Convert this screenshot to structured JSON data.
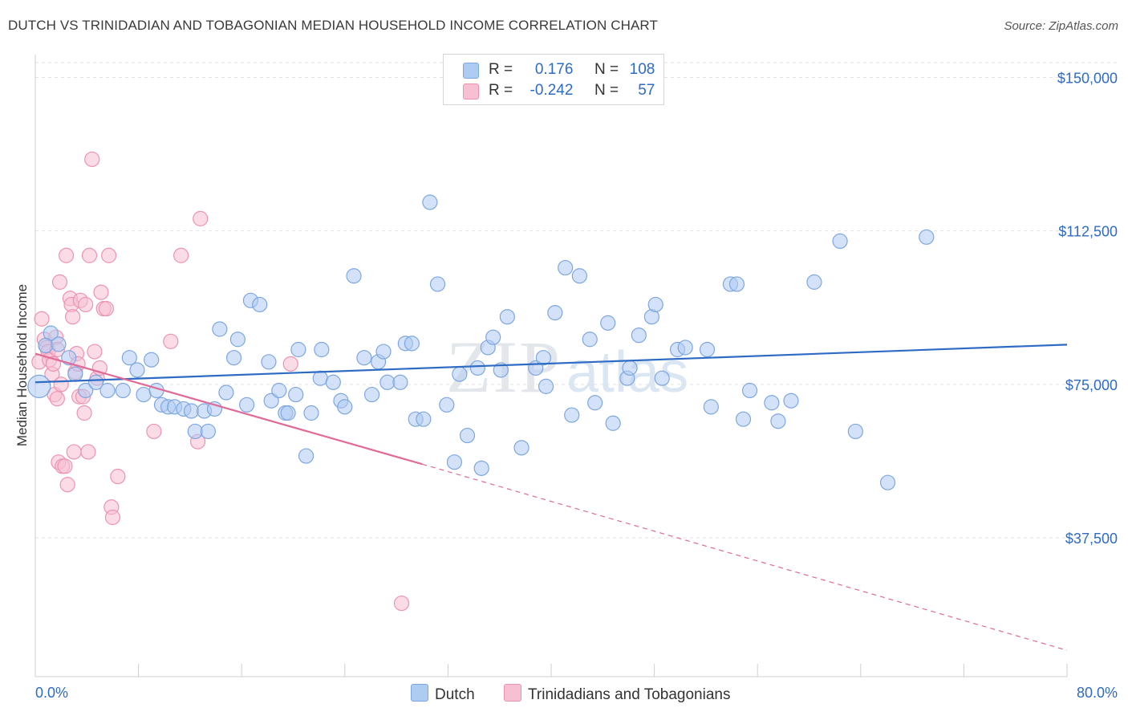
{
  "header": {
    "title": "DUTCH VS TRINIDADIAN AND TOBAGONIAN MEDIAN HOUSEHOLD INCOME CORRELATION CHART",
    "source": "Source: ZipAtlas.com"
  },
  "watermark": {
    "zip": "ZIP",
    "atlas": "atlas"
  },
  "legend": {
    "rows": [
      {
        "r_label": "R =",
        "r_value": "0.176",
        "n_label": "N =",
        "n_value": "108",
        "color": "#aecbf2",
        "stroke": "#7ea7e0"
      },
      {
        "r_label": "R =",
        "r_value": "-0.242",
        "n_label": "N =",
        "n_value": "57",
        "color": "#f7c0d2",
        "stroke": "#ec93b1"
      }
    ]
  },
  "bottom_legend": {
    "dutch": "Dutch",
    "trini": "Trinidadians and Tobagonians"
  },
  "chart_data": {
    "type": "scatter",
    "title": "DUTCH VS TRINIDADIAN AND TOBAGONIAN MEDIAN HOUSEHOLD INCOME CORRELATION CHART",
    "ylabel": "Median Household Income",
    "xlim": [
      0,
      80
    ],
    "ylim": [
      0,
      155000
    ],
    "x_tick_labels": [
      "0.0%",
      "80.0%"
    ],
    "y_ticks": [
      {
        "value": 37500,
        "label": "$37,500"
      },
      {
        "value": 75000,
        "label": "$75,000"
      },
      {
        "value": 112500,
        "label": "$112,500"
      },
      {
        "value": 150000,
        "label": "$150,000"
      }
    ],
    "grid": "horizontal dashed",
    "legend_position": "top-center",
    "series": [
      {
        "name": "Dutch",
        "color": "#7ea7e0",
        "fill": "#aecbf2",
        "trend": {
          "x0": 0,
          "y0": 75500,
          "x1": 80,
          "y1": 84700
        },
        "points": [
          [
            0.3,
            74500
          ],
          [
            1.2,
            87500
          ],
          [
            0.8,
            84500
          ],
          [
            1.8,
            84800
          ],
          [
            2.6,
            81500
          ],
          [
            3.1,
            77500
          ],
          [
            3.9,
            73500
          ],
          [
            4.7,
            75500
          ],
          [
            5.6,
            73500
          ],
          [
            6.8,
            73500
          ],
          [
            7.3,
            81500
          ],
          [
            7.9,
            78500
          ],
          [
            8.4,
            72500
          ],
          [
            9.0,
            81000
          ],
          [
            9.4,
            73500
          ],
          [
            9.8,
            70000
          ],
          [
            10.3,
            69500
          ],
          [
            10.8,
            69500
          ],
          [
            11.5,
            69000
          ],
          [
            12.1,
            68500
          ],
          [
            12.4,
            63500
          ],
          [
            13.1,
            68500
          ],
          [
            13.4,
            63500
          ],
          [
            13.9,
            69000
          ],
          [
            14.3,
            88500
          ],
          [
            14.8,
            73000
          ],
          [
            15.4,
            81500
          ],
          [
            15.7,
            86000
          ],
          [
            16.4,
            70000
          ],
          [
            16.7,
            95500
          ],
          [
            17.4,
            94500
          ],
          [
            18.1,
            80500
          ],
          [
            18.3,
            71000
          ],
          [
            18.9,
            73500
          ],
          [
            19.4,
            68000
          ],
          [
            19.6,
            68000
          ],
          [
            20.2,
            72500
          ],
          [
            20.4,
            83500
          ],
          [
            21.0,
            57500
          ],
          [
            21.4,
            68000
          ],
          [
            22.1,
            76500
          ],
          [
            22.2,
            83500
          ],
          [
            23.1,
            75500
          ],
          [
            23.7,
            71000
          ],
          [
            24.0,
            69500
          ],
          [
            24.7,
            101500
          ],
          [
            25.5,
            81500
          ],
          [
            26.1,
            72500
          ],
          [
            26.6,
            80500
          ],
          [
            27.0,
            83000
          ],
          [
            27.3,
            75500
          ],
          [
            28.3,
            75500
          ],
          [
            28.7,
            85000
          ],
          [
            29.2,
            85000
          ],
          [
            29.5,
            66500
          ],
          [
            30.1,
            66500
          ],
          [
            30.6,
            119500
          ],
          [
            31.2,
            99500
          ],
          [
            31.9,
            70000
          ],
          [
            32.5,
            56000
          ],
          [
            32.9,
            77500
          ],
          [
            33.5,
            62500
          ],
          [
            34.3,
            79000
          ],
          [
            34.6,
            54500
          ],
          [
            35.1,
            84000
          ],
          [
            35.5,
            86500
          ],
          [
            36.1,
            78500
          ],
          [
            36.6,
            91500
          ],
          [
            37.7,
            59500
          ],
          [
            38.8,
            79000
          ],
          [
            39.4,
            81500
          ],
          [
            39.6,
            74500
          ],
          [
            40.3,
            92500
          ],
          [
            41.1,
            103500
          ],
          [
            41.6,
            67500
          ],
          [
            42.2,
            101500
          ],
          [
            43.0,
            86000
          ],
          [
            43.4,
            70500
          ],
          [
            44.4,
            90000
          ],
          [
            44.8,
            65500
          ],
          [
            45.9,
            76500
          ],
          [
            46.1,
            79000
          ],
          [
            46.8,
            87000
          ],
          [
            47.8,
            91500
          ],
          [
            48.1,
            94500
          ],
          [
            48.6,
            76500
          ],
          [
            49.8,
            83500
          ],
          [
            50.4,
            84000
          ],
          [
            52.1,
            83500
          ],
          [
            52.4,
            69500
          ],
          [
            53.9,
            99500
          ],
          [
            54.4,
            99500
          ],
          [
            54.9,
            66500
          ],
          [
            55.4,
            73500
          ],
          [
            57.1,
            70500
          ],
          [
            57.6,
            66000
          ],
          [
            58.6,
            71000
          ],
          [
            60.4,
            100000
          ],
          [
            62.4,
            110000
          ],
          [
            63.6,
            63500
          ],
          [
            66.1,
            51000
          ],
          [
            69.1,
            111000
          ]
        ]
      },
      {
        "name": "Trinidadians and Tobagonians",
        "color": "#ec93b1",
        "fill": "#f7c0d2",
        "trend_solid": {
          "x0": 0,
          "y0": 82500,
          "x1": 30,
          "y1": 55500
        },
        "trend_dashed": {
          "x0": 30,
          "y0": 55500,
          "x1": 80,
          "y1": 10000
        },
        "points": [
          [
            0.3,
            80500
          ],
          [
            0.5,
            91000
          ],
          [
            0.7,
            86000
          ],
          [
            0.9,
            84000
          ],
          [
            1.0,
            83000
          ],
          [
            1.1,
            81000
          ],
          [
            1.3,
            77500
          ],
          [
            1.4,
            80000
          ],
          [
            1.5,
            72500
          ],
          [
            1.6,
            86500
          ],
          [
            1.7,
            71500
          ],
          [
            1.8,
            56000
          ],
          [
            1.9,
            100000
          ],
          [
            2.0,
            75000
          ],
          [
            2.1,
            55000
          ],
          [
            2.3,
            55000
          ],
          [
            2.5,
            50500
          ],
          [
            2.7,
            96000
          ],
          [
            2.8,
            94500
          ],
          [
            2.9,
            91500
          ],
          [
            3.0,
            58500
          ],
          [
            3.1,
            78000
          ],
          [
            3.2,
            82500
          ],
          [
            3.3,
            80000
          ],
          [
            3.4,
            72000
          ],
          [
            3.5,
            95500
          ],
          [
            3.7,
            72000
          ],
          [
            3.8,
            68000
          ],
          [
            3.9,
            94500
          ],
          [
            4.1,
            58500
          ],
          [
            4.2,
            106500
          ],
          [
            4.4,
            130000
          ],
          [
            4.6,
            83000
          ],
          [
            4.8,
            76500
          ],
          [
            5.0,
            79000
          ],
          [
            5.1,
            97500
          ],
          [
            5.3,
            93500
          ],
          [
            5.5,
            93500
          ],
          [
            5.7,
            106500
          ],
          [
            5.9,
            45000
          ],
          [
            6.0,
            42500
          ],
          [
            6.4,
            52500
          ],
          [
            1.7,
            83500
          ],
          [
            2.4,
            106500
          ],
          [
            9.2,
            63500
          ],
          [
            10.5,
            85500
          ],
          [
            11.3,
            106500
          ],
          [
            12.6,
            61000
          ],
          [
            12.8,
            115500
          ],
          [
            19.8,
            80000
          ],
          [
            28.4,
            21500
          ]
        ]
      }
    ]
  }
}
